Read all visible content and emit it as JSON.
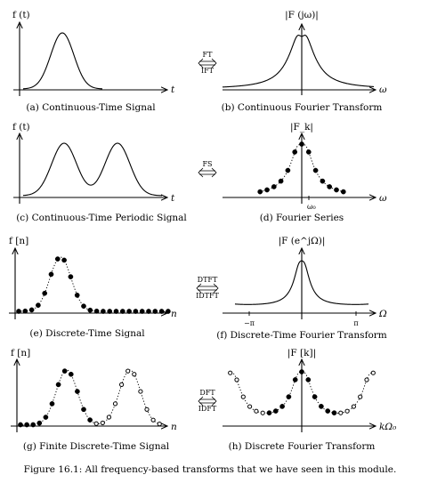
{
  "panels": {
    "a": {
      "ylabel": "f (t)",
      "xlabel": "t",
      "caption": "(a) Continuous-Time Signal"
    },
    "b": {
      "ylabel": "|F (jω)|",
      "xlabel": "ω",
      "caption": "(b) Continuous Fourier Transform"
    },
    "c": {
      "ylabel": "f (t)",
      "xlabel": "t",
      "caption": "(c) Continuous-Time Periodic Signal"
    },
    "d": {
      "ylabel": "|F_k|",
      "xlabel": "ω",
      "tick": "ω₀",
      "caption": "(d) Fourier Series"
    },
    "e": {
      "ylabel": "f [n]",
      "xlabel": "n",
      "caption": "(e) Discrete-Time Signal"
    },
    "f": {
      "ylabel": "|F (e^jΩ)|",
      "xlabel": "Ω",
      "tick_neg": "−π",
      "tick_pos": "π",
      "caption": "(f) Discrete-Time Fourier Transform"
    },
    "g": {
      "ylabel": "f [n]",
      "xlabel": "n",
      "caption": "(g) Finite Discrete-Time Signal"
    },
    "h": {
      "ylabel": "|F [k]|",
      "xlabel": "kΩ₀",
      "caption": "(h) Discrete Fourier Transform"
    }
  },
  "arrows": {
    "row1": {
      "top": "FT",
      "bottom": "IFT"
    },
    "row2": {
      "top": "FS"
    },
    "row3": {
      "top": "DTFT",
      "bottom": "IDTFT"
    },
    "row4": {
      "top": "DFT",
      "bottom": "IDFT"
    }
  },
  "figure_caption": "Figure 16.1: All frequency-based transforms that we have seen in this module."
}
